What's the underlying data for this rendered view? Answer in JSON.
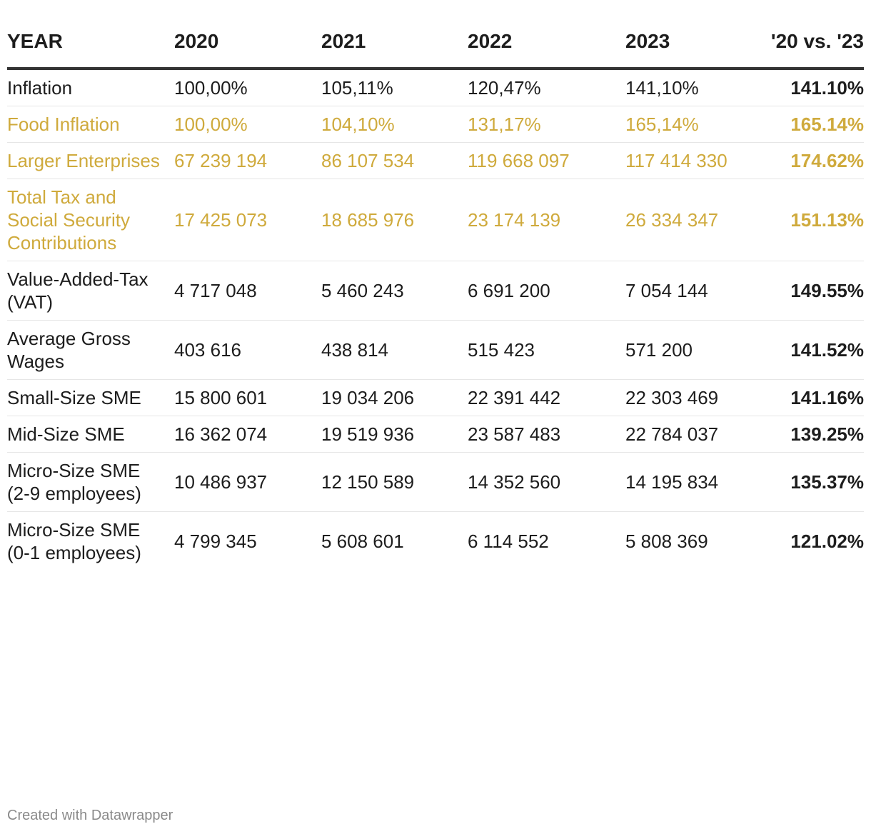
{
  "chart_data": {
    "type": "table",
    "highlight_color": "#cfaa3c",
    "columns": [
      "YEAR",
      "2020",
      "2021",
      "2022",
      "2023",
      "'20 vs. '23"
    ],
    "rows": [
      {
        "label": "Inflation",
        "values": [
          "100,00%",
          "105,11%",
          "120,47%",
          "141,10%"
        ],
        "change": "141.10%",
        "highlight": false
      },
      {
        "label": "Food Inflation",
        "values": [
          "100,00%",
          "104,10%",
          "131,17%",
          "165,14%"
        ],
        "change": "165.14%",
        "highlight": true
      },
      {
        "label": "Larger Enterprises",
        "values": [
          "67 239 194",
          "86 107 534",
          "119 668 097",
          "117 414 330"
        ],
        "change": "174.62%",
        "highlight": true
      },
      {
        "label": "Total Tax and Social Security Contributions",
        "values": [
          "17 425 073",
          "18 685 976",
          "23 174 139",
          "26 334 347"
        ],
        "change": "151.13%",
        "highlight": true
      },
      {
        "label": "Value-Added-Tax (VAT)",
        "values": [
          "4 717 048",
          "5 460 243",
          "6 691 200",
          "7 054 144"
        ],
        "change": "149.55%",
        "highlight": false
      },
      {
        "label": "Average Gross Wages",
        "values": [
          "403 616",
          "438 814",
          "515 423",
          "571 200"
        ],
        "change": "141.52%",
        "highlight": false
      },
      {
        "label": "Small-Size SME",
        "values": [
          "15 800 601",
          "19 034 206",
          "22 391 442",
          "22 303 469"
        ],
        "change": "141.16%",
        "highlight": false
      },
      {
        "label": "Mid-Size SME",
        "values": [
          "16 362 074",
          "19 519 936",
          "23 587 483",
          "22 784 037"
        ],
        "change": "139.25%",
        "highlight": false
      },
      {
        "label": "Micro-Size SME (2-9 employees)",
        "values": [
          "10 486 937",
          "12 150 589",
          "14 352 560",
          "14 195 834"
        ],
        "change": "135.37%",
        "highlight": false
      },
      {
        "label": "Micro-Size SME (0-1 employees)",
        "values": [
          "4 799 345",
          "5 608 601",
          "6 114 552",
          "5 808 369"
        ],
        "change": "121.02%",
        "highlight": false
      }
    ]
  },
  "footer": {
    "credit": "Created with Datawrapper"
  }
}
